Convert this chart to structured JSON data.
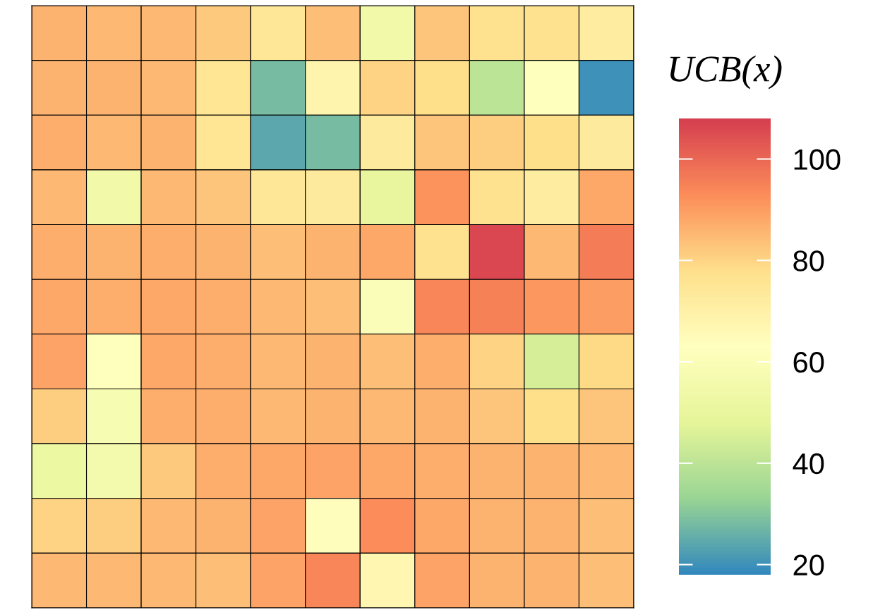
{
  "chart_data": {
    "type": "heatmap",
    "categories": [
      null,
      null,
      null,
      null,
      null,
      null,
      null,
      null,
      null,
      null,
      null
    ],
    "y_categories": [
      null,
      null,
      null,
      null,
      null,
      null,
      null,
      null,
      null,
      null,
      null
    ],
    "cells": [
      [
        86,
        85,
        85,
        82,
        74,
        84,
        55,
        83,
        77,
        77,
        72
      ],
      [
        86,
        86,
        85,
        75,
        28,
        68,
        80,
        78,
        40,
        62,
        20
      ],
      [
        87,
        85,
        86,
        75,
        24,
        28,
        73,
        83,
        81,
        78,
        73
      ],
      [
        85,
        55,
        85,
        83,
        74,
        73,
        50,
        92,
        77,
        72,
        88
      ],
      [
        87,
        86,
        87,
        86,
        84,
        86,
        88,
        77,
        106,
        85,
        96
      ],
      [
        88,
        87,
        88,
        87,
        85,
        84,
        60,
        94,
        95,
        91,
        90
      ],
      [
        89,
        62,
        88,
        87,
        85,
        86,
        84,
        87,
        80,
        45,
        79
      ],
      [
        81,
        58,
        87,
        87,
        85,
        86,
        85,
        86,
        83,
        78,
        83
      ],
      [
        52,
        56,
        82,
        87,
        88,
        89,
        88,
        87,
        86,
        86,
        85
      ],
      [
        80,
        81,
        85,
        86,
        89,
        64,
        93,
        88,
        86,
        86,
        84
      ],
      [
        85,
        85,
        85,
        84,
        89,
        94,
        67,
        89,
        86,
        86,
        84
      ]
    ],
    "clim": [
      18,
      108
    ],
    "cticks": [
      20,
      40,
      60,
      80,
      100
    ],
    "clabel": "UCB(x)"
  }
}
